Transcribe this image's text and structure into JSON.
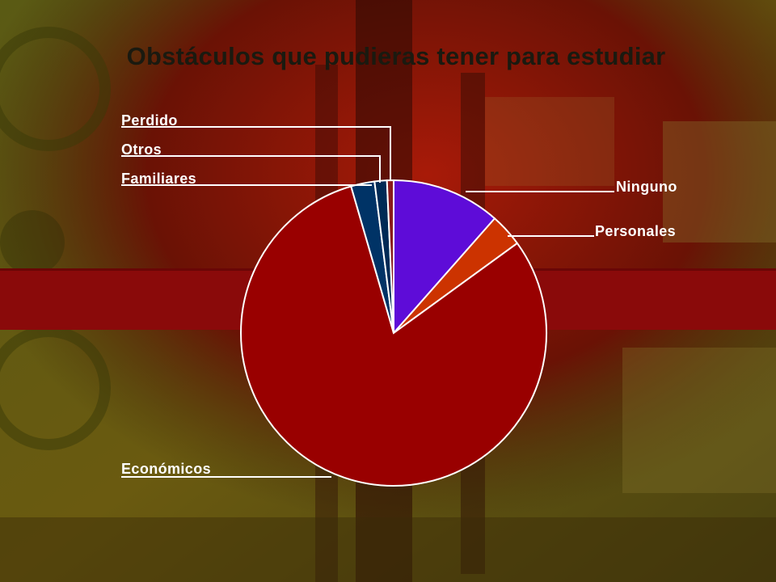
{
  "slide": {
    "title": "Obstáculos que pudieras tener para estudiar"
  },
  "chart_data": {
    "type": "pie",
    "title": "Obstáculos que pudieras tener para estudiar",
    "slices": [
      {
        "label": "Ninguno",
        "value": 11.5,
        "color": "#5e0cd8"
      },
      {
        "label": "Personales",
        "value": 3.5,
        "color": "#cc3300"
      },
      {
        "label": "Económicos",
        "value": 80.5,
        "color": "#990000"
      },
      {
        "label": "Familiares",
        "value": 2.5,
        "color": "#003366"
      },
      {
        "label": "Otros",
        "value": 1.3,
        "color": "#002a55"
      },
      {
        "label": "Perdido",
        "value": 0.7,
        "color": "#8a1a1a"
      }
    ],
    "start_angle_deg": 0,
    "direction": "clockwise",
    "legend": "none"
  }
}
